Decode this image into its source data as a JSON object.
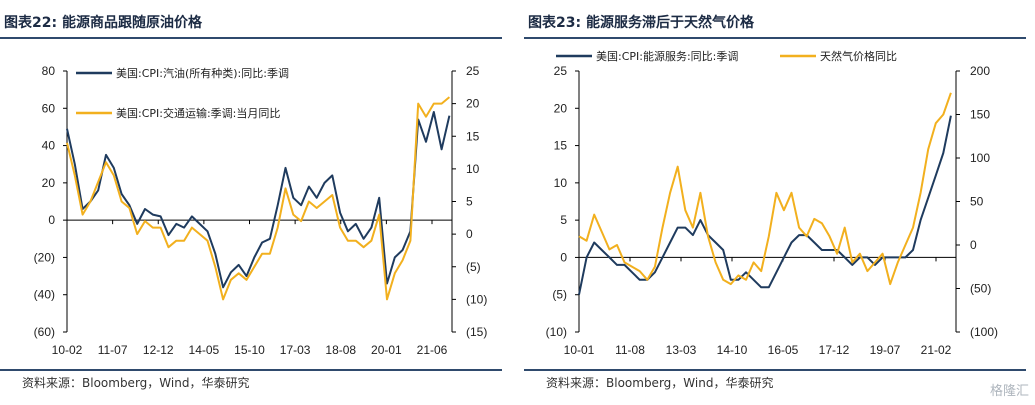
{
  "watermark": "格隆汇",
  "colors": {
    "navy": "#1f3b5e",
    "gold": "#f2b01e",
    "rule": "#2f4a6d"
  },
  "chart_data": [
    {
      "type": "line",
      "title": "图表22:  能源商品跟随原油价格",
      "source": "资料来源：Bloomberg，Wind，华泰研究",
      "x_ticks": [
        "10-02",
        "11-07",
        "12-12",
        "14-05",
        "15-10",
        "17-03",
        "18-08",
        "20-01",
        "21-06"
      ],
      "x_range": [
        "2010-02",
        "2022-06"
      ],
      "y_left": {
        "ticks": [
          "80",
          "60",
          "40",
          "20",
          "0",
          "(20)",
          "(40)",
          "(60)"
        ],
        "range": [
          -60,
          80
        ]
      },
      "y_right": {
        "ticks": [
          "25",
          "20",
          "15",
          "10",
          "5",
          "0",
          "(5)",
          "(10)",
          "(15)"
        ],
        "range": [
          -15,
          25
        ]
      },
      "series": [
        {
          "name": "美国:CPI:汽油(所有种类):同比:季调",
          "axis": "left",
          "color": "#1f3b5e",
          "x": [
            "2010-02",
            "2010-05",
            "2010-08",
            "2010-11",
            "2011-02",
            "2011-05",
            "2011-08",
            "2011-11",
            "2012-02",
            "2012-05",
            "2012-08",
            "2012-11",
            "2013-02",
            "2013-05",
            "2013-08",
            "2013-11",
            "2014-02",
            "2014-05",
            "2014-08",
            "2014-11",
            "2015-02",
            "2015-05",
            "2015-08",
            "2015-11",
            "2016-02",
            "2016-05",
            "2016-08",
            "2016-11",
            "2017-02",
            "2017-05",
            "2017-08",
            "2017-11",
            "2018-02",
            "2018-05",
            "2018-08",
            "2018-11",
            "2019-02",
            "2019-05",
            "2019-08",
            "2019-11",
            "2020-02",
            "2020-05",
            "2020-08",
            "2020-11",
            "2021-02",
            "2021-05",
            "2021-08",
            "2021-11",
            "2022-02",
            "2022-05"
          ],
          "values": [
            49,
            30,
            6,
            10,
            16,
            35,
            28,
            14,
            8,
            -2,
            6,
            3,
            2,
            -8,
            -2,
            -4,
            2,
            -2,
            -6,
            -18,
            -36,
            -28,
            -24,
            -30,
            -20,
            -12,
            -10,
            8,
            28,
            12,
            8,
            18,
            12,
            20,
            24,
            4,
            -6,
            -2,
            -10,
            -4,
            12,
            -34,
            -20,
            -16,
            -6,
            54,
            42,
            58,
            38,
            56
          ]
        },
        {
          "name": "美国:CPI:交通运输:季调:当月同比",
          "axis": "right",
          "color": "#f2b01e",
          "x": [
            "2010-02",
            "2010-05",
            "2010-08",
            "2010-11",
            "2011-02",
            "2011-05",
            "2011-08",
            "2011-11",
            "2012-02",
            "2012-05",
            "2012-08",
            "2012-11",
            "2013-02",
            "2013-05",
            "2013-08",
            "2013-11",
            "2014-02",
            "2014-05",
            "2014-08",
            "2014-11",
            "2015-02",
            "2015-05",
            "2015-08",
            "2015-11",
            "2016-02",
            "2016-05",
            "2016-08",
            "2016-11",
            "2017-02",
            "2017-05",
            "2017-08",
            "2017-11",
            "2018-02",
            "2018-05",
            "2018-08",
            "2018-11",
            "2019-02",
            "2019-05",
            "2019-08",
            "2019-11",
            "2020-02",
            "2020-05",
            "2020-08",
            "2020-11",
            "2021-02",
            "2021-05",
            "2021-08",
            "2021-11",
            "2022-02",
            "2022-05"
          ],
          "values": [
            14,
            9,
            3,
            5,
            8,
            11,
            9,
            5,
            4,
            0,
            2,
            1,
            1,
            -2,
            -1,
            -1,
            1,
            0,
            -1,
            -5,
            -10,
            -7,
            -6,
            -7,
            -5,
            -3,
            -3,
            1,
            7,
            3,
            2,
            5,
            4,
            5,
            6,
            1,
            -1,
            -1,
            -2,
            -1,
            3,
            -10,
            -6,
            -4,
            -1,
            20,
            18,
            20,
            20,
            21
          ]
        }
      ]
    },
    {
      "type": "line",
      "title": "图表23:  能源服务滞后于天然气价格",
      "source": "资料来源：Bloomberg，Wind，华泰研究",
      "x_ticks": [
        "10-01",
        "11-08",
        "13-03",
        "14-10",
        "16-05",
        "17-12",
        "19-07",
        "21-02"
      ],
      "x_range": [
        "2010-01",
        "2022-06"
      ],
      "y_left": {
        "ticks": [
          "25",
          "20",
          "15",
          "10",
          "5",
          "0",
          "(5)",
          "(10)"
        ],
        "range": [
          -10,
          25
        ]
      },
      "y_right": {
        "ticks": [
          "200",
          "150",
          "100",
          "50",
          "0",
          "(50)",
          "(100)"
        ],
        "range": [
          -100,
          200
        ]
      },
      "series": [
        {
          "name": "美国:CPI:能源服务:同比:季调",
          "axis": "left",
          "color": "#1f3b5e",
          "x": [
            "2010-01",
            "2010-04",
            "2010-07",
            "2010-10",
            "2011-01",
            "2011-04",
            "2011-07",
            "2011-10",
            "2012-01",
            "2012-04",
            "2012-07",
            "2012-10",
            "2013-01",
            "2013-04",
            "2013-07",
            "2013-10",
            "2014-01",
            "2014-04",
            "2014-07",
            "2014-10",
            "2015-01",
            "2015-04",
            "2015-07",
            "2015-10",
            "2016-01",
            "2016-04",
            "2016-07",
            "2016-10",
            "2017-01",
            "2017-04",
            "2017-07",
            "2017-10",
            "2018-01",
            "2018-04",
            "2018-07",
            "2018-10",
            "2019-01",
            "2019-04",
            "2019-07",
            "2019-10",
            "2020-01",
            "2020-04",
            "2020-07",
            "2020-10",
            "2021-01",
            "2021-04",
            "2021-07",
            "2021-10",
            "2022-01",
            "2022-04"
          ],
          "values": [
            -5,
            0,
            2,
            1,
            0,
            -1,
            -1,
            -2,
            -3,
            -3,
            -2,
            0,
            2,
            4,
            4,
            3,
            5,
            3,
            2,
            1,
            -3,
            -3,
            -2,
            -3,
            -4,
            -4,
            -2,
            0,
            2,
            3,
            3,
            2,
            1,
            1,
            1,
            0,
            -1,
            0,
            0,
            -1,
            0,
            0,
            0,
            0,
            1,
            5,
            8,
            11,
            14,
            19
          ]
        },
        {
          "name": "天然气价格同比",
          "axis": "right",
          "color": "#f2b01e",
          "x": [
            "2010-01",
            "2010-04",
            "2010-07",
            "2010-10",
            "2011-01",
            "2011-04",
            "2011-07",
            "2011-10",
            "2012-01",
            "2012-04",
            "2012-07",
            "2012-10",
            "2013-01",
            "2013-04",
            "2013-07",
            "2013-10",
            "2014-01",
            "2014-04",
            "2014-07",
            "2014-10",
            "2015-01",
            "2015-04",
            "2015-07",
            "2015-10",
            "2016-01",
            "2016-04",
            "2016-07",
            "2016-10",
            "2017-01",
            "2017-04",
            "2017-07",
            "2017-10",
            "2018-01",
            "2018-04",
            "2018-07",
            "2018-10",
            "2019-01",
            "2019-04",
            "2019-07",
            "2019-10",
            "2020-01",
            "2020-04",
            "2020-07",
            "2020-10",
            "2021-01",
            "2021-04",
            "2021-07",
            "2021-10",
            "2022-01",
            "2022-04"
          ],
          "values": [
            10,
            5,
            35,
            15,
            -5,
            0,
            -20,
            -25,
            -30,
            -40,
            -25,
            20,
            60,
            90,
            40,
            20,
            60,
            10,
            -20,
            -40,
            -45,
            -35,
            -40,
            -20,
            -30,
            10,
            60,
            40,
            60,
            20,
            10,
            30,
            25,
            10,
            -10,
            20,
            -20,
            -10,
            -30,
            -20,
            -10,
            -45,
            -20,
            0,
            20,
            60,
            110,
            140,
            150,
            175
          ]
        }
      ]
    }
  ]
}
